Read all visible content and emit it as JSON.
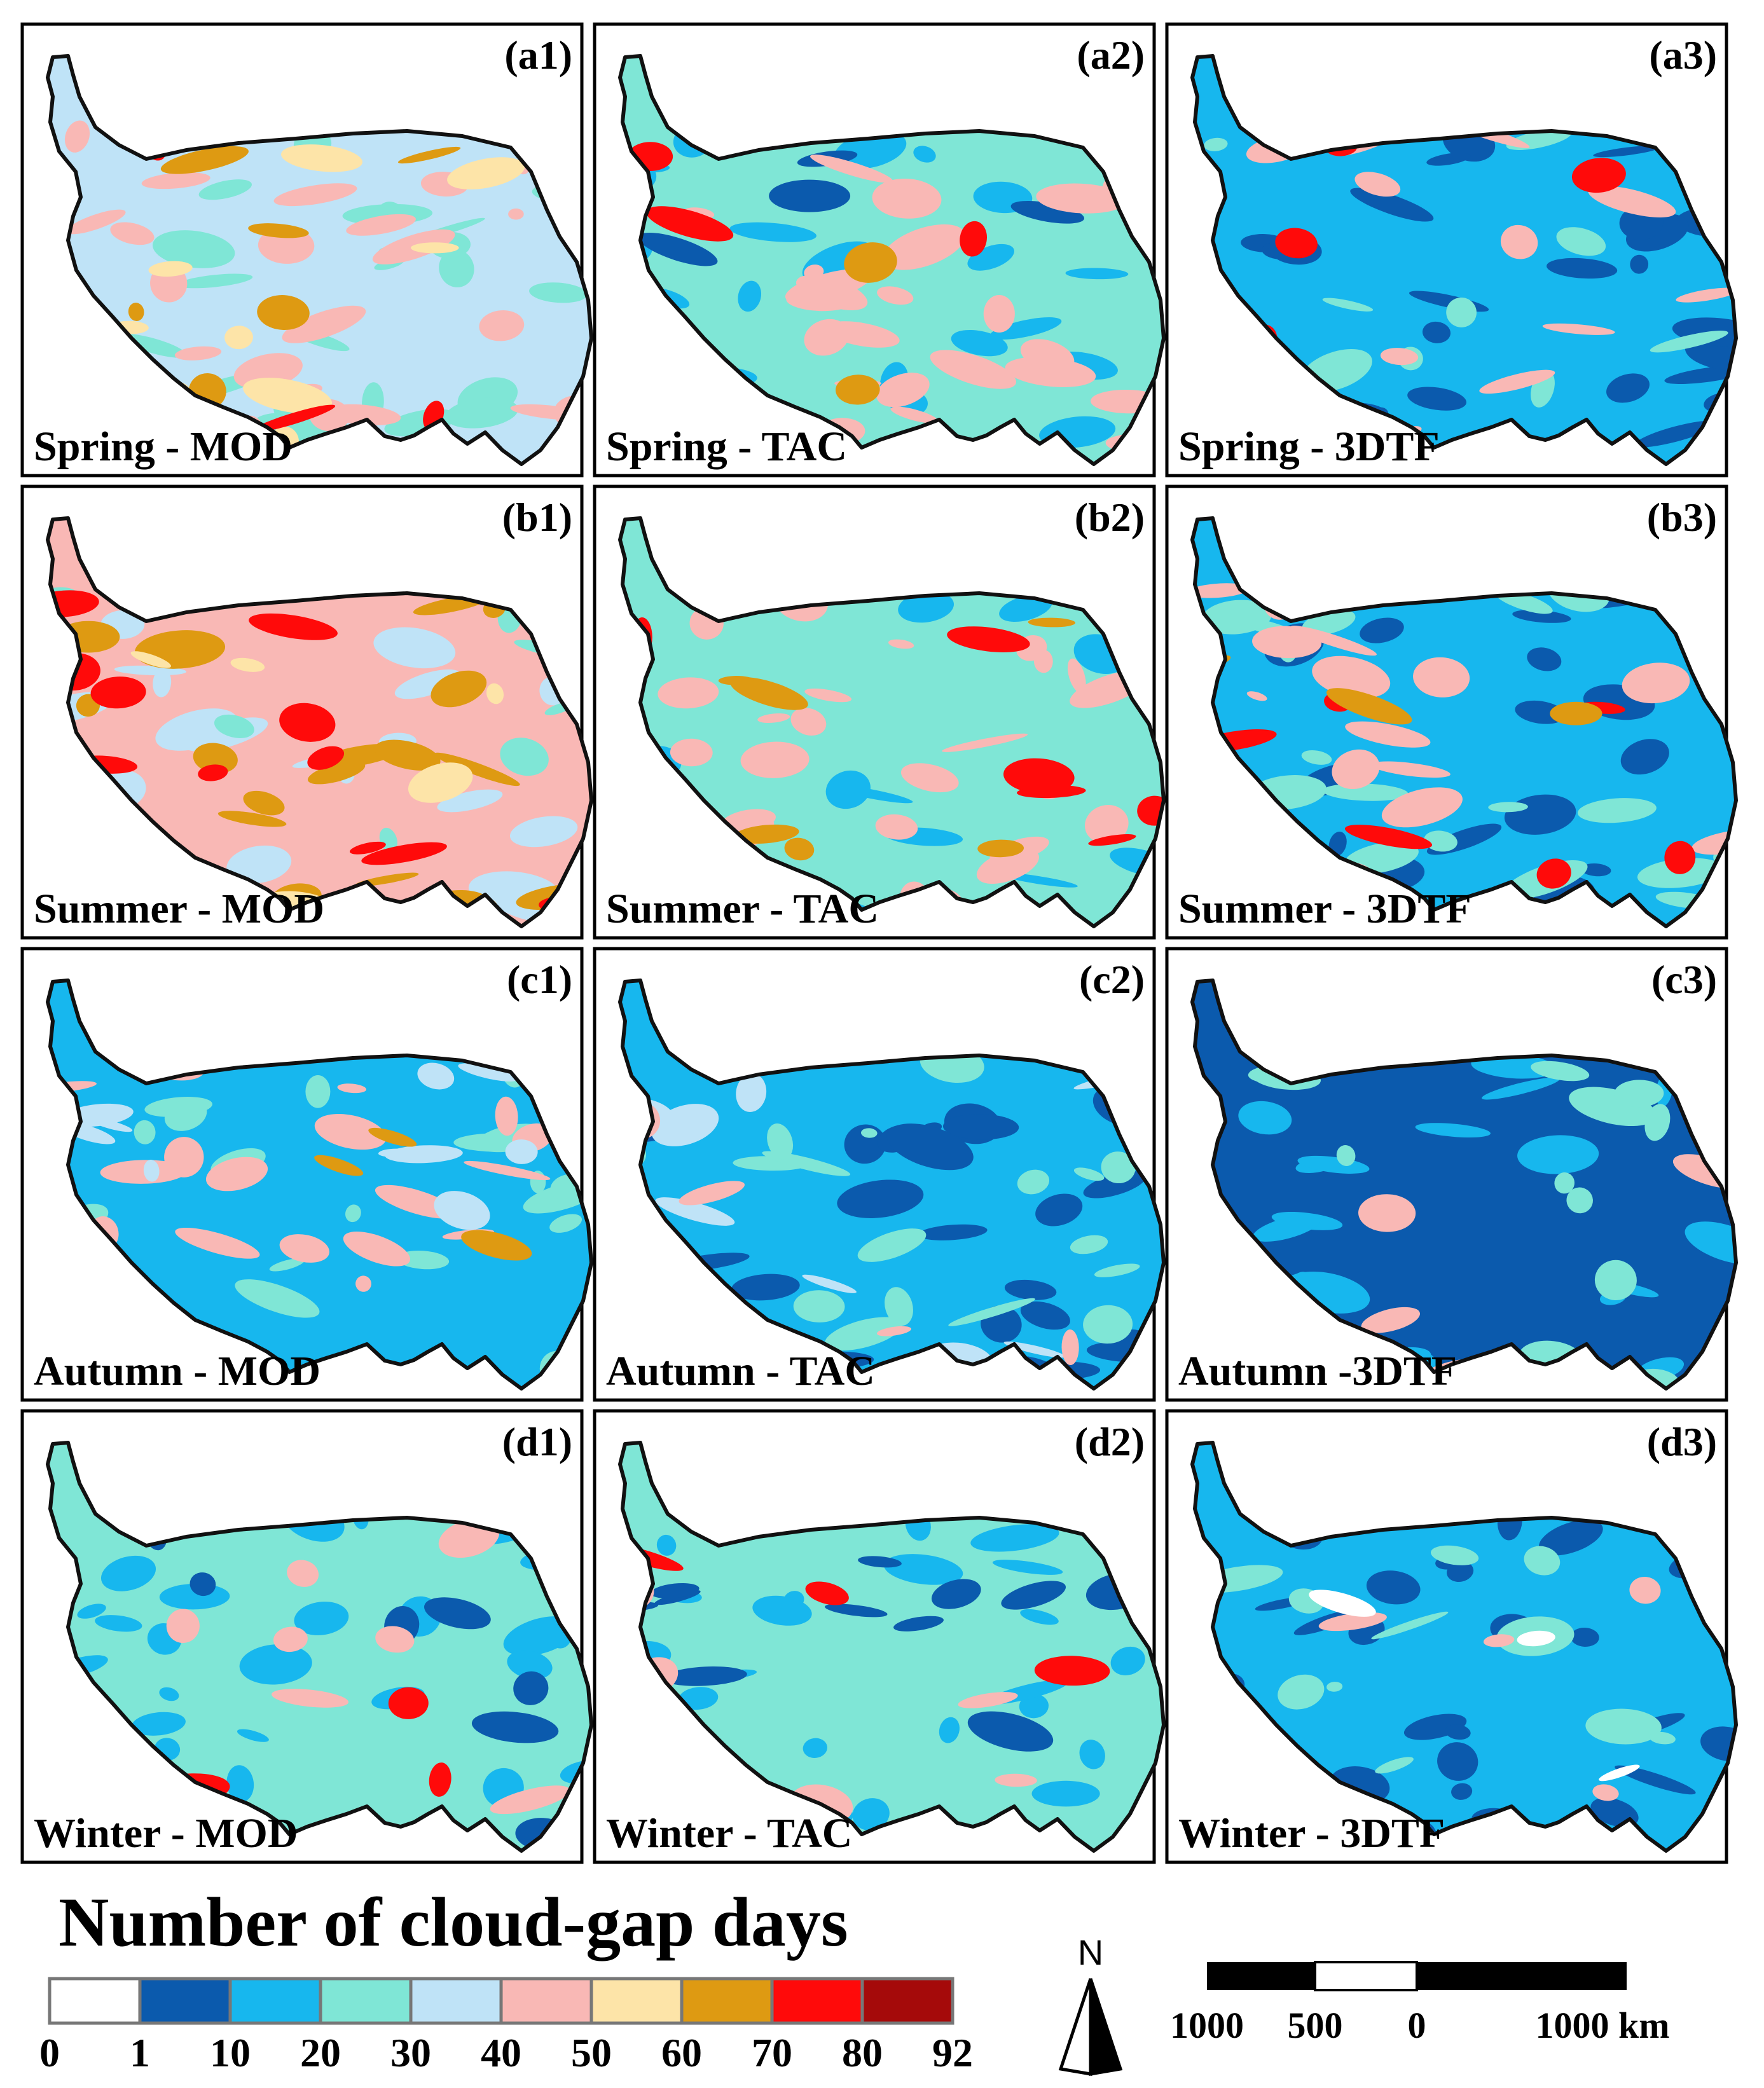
{
  "panels": [
    {
      "id": "(a1)",
      "label": "Spring - MOD",
      "base": "#bfe3f7",
      "layers": [
        [
          "#7fe6d6",
          0.35
        ],
        [
          "#f9b8b5",
          0.45
        ],
        [
          "#fde4a8",
          0.15
        ],
        [
          "#de9a12",
          0.1
        ],
        [
          "#ff0a0a",
          0.06
        ]
      ]
    },
    {
      "id": "(a2)",
      "label": "Spring - TAC",
      "base": "#7fe6d6",
      "layers": [
        [
          "#17b7ee",
          0.35
        ],
        [
          "#0b5aad",
          0.06
        ],
        [
          "#f9b8b5",
          0.35
        ],
        [
          "#de9a12",
          0.05
        ],
        [
          "#ff0a0a",
          0.05
        ]
      ]
    },
    {
      "id": "(a3)",
      "label": "Spring - 3DTF",
      "base": "#17b7ee",
      "layers": [
        [
          "#0b5aad",
          0.35
        ],
        [
          "#7fe6d6",
          0.2
        ],
        [
          "#f9b8b5",
          0.2
        ],
        [
          "#ff0a0a",
          0.05
        ]
      ]
    },
    {
      "id": "(b1)",
      "label": "Summer - MOD",
      "base": "#f9b8b5",
      "layers": [
        [
          "#bfe3f7",
          0.3
        ],
        [
          "#7fe6d6",
          0.1
        ],
        [
          "#de9a12",
          0.3
        ],
        [
          "#fde4a8",
          0.1
        ],
        [
          "#ff0a0a",
          0.18
        ]
      ]
    },
    {
      "id": "(b2)",
      "label": "Summer - TAC",
      "base": "#7fe6d6",
      "layers": [
        [
          "#17b7ee",
          0.2
        ],
        [
          "#f9b8b5",
          0.4
        ],
        [
          "#de9a12",
          0.1
        ],
        [
          "#ff0a0a",
          0.1
        ]
      ]
    },
    {
      "id": "(b3)",
      "label": "Summer - 3DTF",
      "base": "#17b7ee",
      "layers": [
        [
          "#0b5aad",
          0.25
        ],
        [
          "#7fe6d6",
          0.25
        ],
        [
          "#f9b8b5",
          0.25
        ],
        [
          "#ff0a0a",
          0.08
        ],
        [
          "#de9a12",
          0.05
        ]
      ]
    },
    {
      "id": "(c1)",
      "label": "Autumn - MOD",
      "base": "#17b7ee",
      "layers": [
        [
          "#7fe6d6",
          0.3
        ],
        [
          "#f9b8b5",
          0.25
        ],
        [
          "#bfe3f7",
          0.15
        ],
        [
          "#de9a12",
          0.05
        ]
      ]
    },
    {
      "id": "(c2)",
      "label": "Autumn - TAC",
      "base": "#17b7ee",
      "layers": [
        [
          "#0b5aad",
          0.35
        ],
        [
          "#7fe6d6",
          0.25
        ],
        [
          "#bfe3f7",
          0.15
        ],
        [
          "#f9b8b5",
          0.05
        ]
      ]
    },
    {
      "id": "(c3)",
      "label": "Autumn -3DTF",
      "base": "#0b5aad",
      "layers": [
        [
          "#17b7ee",
          0.35
        ],
        [
          "#7fe6d6",
          0.2
        ],
        [
          "#f9b8b5",
          0.05
        ]
      ]
    },
    {
      "id": "(d1)",
      "label": "Winter - MOD",
      "base": "#7fe6d6",
      "layers": [
        [
          "#17b7ee",
          0.35
        ],
        [
          "#0b5aad",
          0.12
        ],
        [
          "#f9b8b5",
          0.1
        ],
        [
          "#ff0a0a",
          0.04
        ]
      ]
    },
    {
      "id": "(d2)",
      "label": "Winter - TAC",
      "base": "#7fe6d6",
      "layers": [
        [
          "#17b7ee",
          0.35
        ],
        [
          "#0b5aad",
          0.2
        ],
        [
          "#f9b8b5",
          0.08
        ],
        [
          "#ff0a0a",
          0.03
        ]
      ]
    },
    {
      "id": "(d3)",
      "label": "Winter - 3DTF",
      "base": "#17b7ee",
      "layers": [
        [
          "#0b5aad",
          0.4
        ],
        [
          "#7fe6d6",
          0.15
        ],
        [
          "#f9b8b5",
          0.06
        ],
        [
          "#ffffff",
          0.03
        ]
      ]
    }
  ],
  "legend": {
    "title": "Number of cloud-gap days",
    "classes": [
      {
        "range": "0-1",
        "color": "#ffffff"
      },
      {
        "range": "1-10",
        "color": "#0b5aad"
      },
      {
        "range": "10-20",
        "color": "#17b7ee"
      },
      {
        "range": "20-30",
        "color": "#7fe6d6"
      },
      {
        "range": "30-40",
        "color": "#bfe3f7"
      },
      {
        "range": "40-50",
        "color": "#f9b8b5"
      },
      {
        "range": "50-60",
        "color": "#fde4a8"
      },
      {
        "range": "60-70",
        "color": "#de9a12"
      },
      {
        "range": "70-80",
        "color": "#ff0a0a"
      },
      {
        "range": "80-92",
        "color": "#a50a0a"
      }
    ],
    "ticks": [
      "0",
      "1",
      "10",
      "20",
      "30",
      "40",
      "50",
      "60",
      "70",
      "80",
      "92"
    ]
  },
  "north_arrow": {
    "label": "N"
  },
  "scale_bar": {
    "labels": [
      "1000",
      "500",
      "0",
      "1000 km"
    ]
  }
}
